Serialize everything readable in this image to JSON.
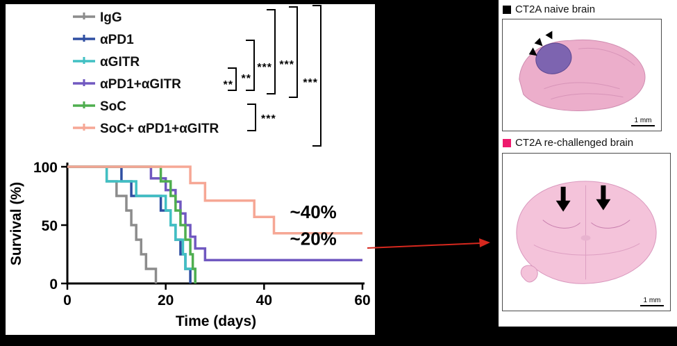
{
  "figure": {
    "background": "#000000"
  },
  "chart_data": {
    "type": "line",
    "variant": "kaplan-meier-step",
    "title": "",
    "xlabel": "Time (days)",
    "ylabel": "Survival (%)",
    "xlim": [
      0,
      60
    ],
    "ylim": [
      0,
      100
    ],
    "xticks": [
      0,
      20,
      40,
      60
    ],
    "yticks": [
      0,
      50,
      100
    ],
    "grid": false,
    "legend_position": "upper-left",
    "series": [
      {
        "name": "IgG",
        "color": "#8c8c8c",
        "points": [
          [
            0,
            100
          ],
          [
            8,
            87.5
          ],
          [
            10,
            75
          ],
          [
            12,
            62.5
          ],
          [
            13,
            50
          ],
          [
            14,
            37.5
          ],
          [
            15,
            25
          ],
          [
            16,
            12.5
          ],
          [
            18,
            0
          ]
        ]
      },
      {
        "name": "αPD1",
        "color": "#2f4fa2",
        "points": [
          [
            0,
            100
          ],
          [
            11,
            87.5
          ],
          [
            13,
            75
          ],
          [
            19,
            62.5
          ],
          [
            21,
            50
          ],
          [
            22,
            37.5
          ],
          [
            23,
            25
          ],
          [
            24,
            12.5
          ],
          [
            25,
            0
          ]
        ]
      },
      {
        "name": "αGITR",
        "color": "#41c0c3",
        "points": [
          [
            0,
            100
          ],
          [
            8,
            87.5
          ],
          [
            14,
            75
          ],
          [
            20,
            62.5
          ],
          [
            21,
            50
          ],
          [
            22,
            37.5
          ],
          [
            23.5,
            25
          ],
          [
            24,
            12.5
          ],
          [
            26,
            0
          ]
        ]
      },
      {
        "name": "αPD1+αGITR",
        "color": "#7058c0",
        "points": [
          [
            0,
            100
          ],
          [
            17,
            90
          ],
          [
            20,
            80
          ],
          [
            22,
            70
          ],
          [
            23,
            60
          ],
          [
            24,
            50
          ],
          [
            25,
            40
          ],
          [
            26,
            30
          ],
          [
            28,
            20
          ],
          [
            60,
            20
          ]
        ]
      },
      {
        "name": "SoC",
        "color": "#4fae4f",
        "points": [
          [
            0,
            100
          ],
          [
            19,
            87.5
          ],
          [
            21,
            75
          ],
          [
            22,
            62.5
          ],
          [
            23,
            50
          ],
          [
            24,
            37.5
          ],
          [
            25,
            25
          ],
          [
            25.5,
            12.5
          ],
          [
            26,
            0
          ]
        ]
      },
      {
        "name": "SoC+ αPD1+αGITR",
        "color": "#f6a795",
        "points": [
          [
            0,
            100
          ],
          [
            25,
            86
          ],
          [
            28,
            71
          ],
          [
            38,
            57
          ],
          [
            42,
            43
          ],
          [
            60,
            43
          ]
        ]
      }
    ],
    "annotations": [
      {
        "text": "~40%",
        "x": 50,
        "y": 56
      },
      {
        "text": "~20%",
        "x": 50,
        "y": 33
      }
    ],
    "significance": {
      "top_brackets": [
        "**",
        "**",
        "***",
        "***",
        "***"
      ],
      "soc_vs_combo_bracket": "***"
    }
  },
  "right_panel": {
    "sections": [
      {
        "marker_color": "#000000",
        "title": "CT2A naive brain",
        "scale_label": "1 mm"
      },
      {
        "marker_color": "#ee1a6d",
        "title": "CT2A re-challenged brain",
        "scale_label": "1 mm"
      }
    ]
  },
  "connector": {
    "color": "#d6281e"
  }
}
